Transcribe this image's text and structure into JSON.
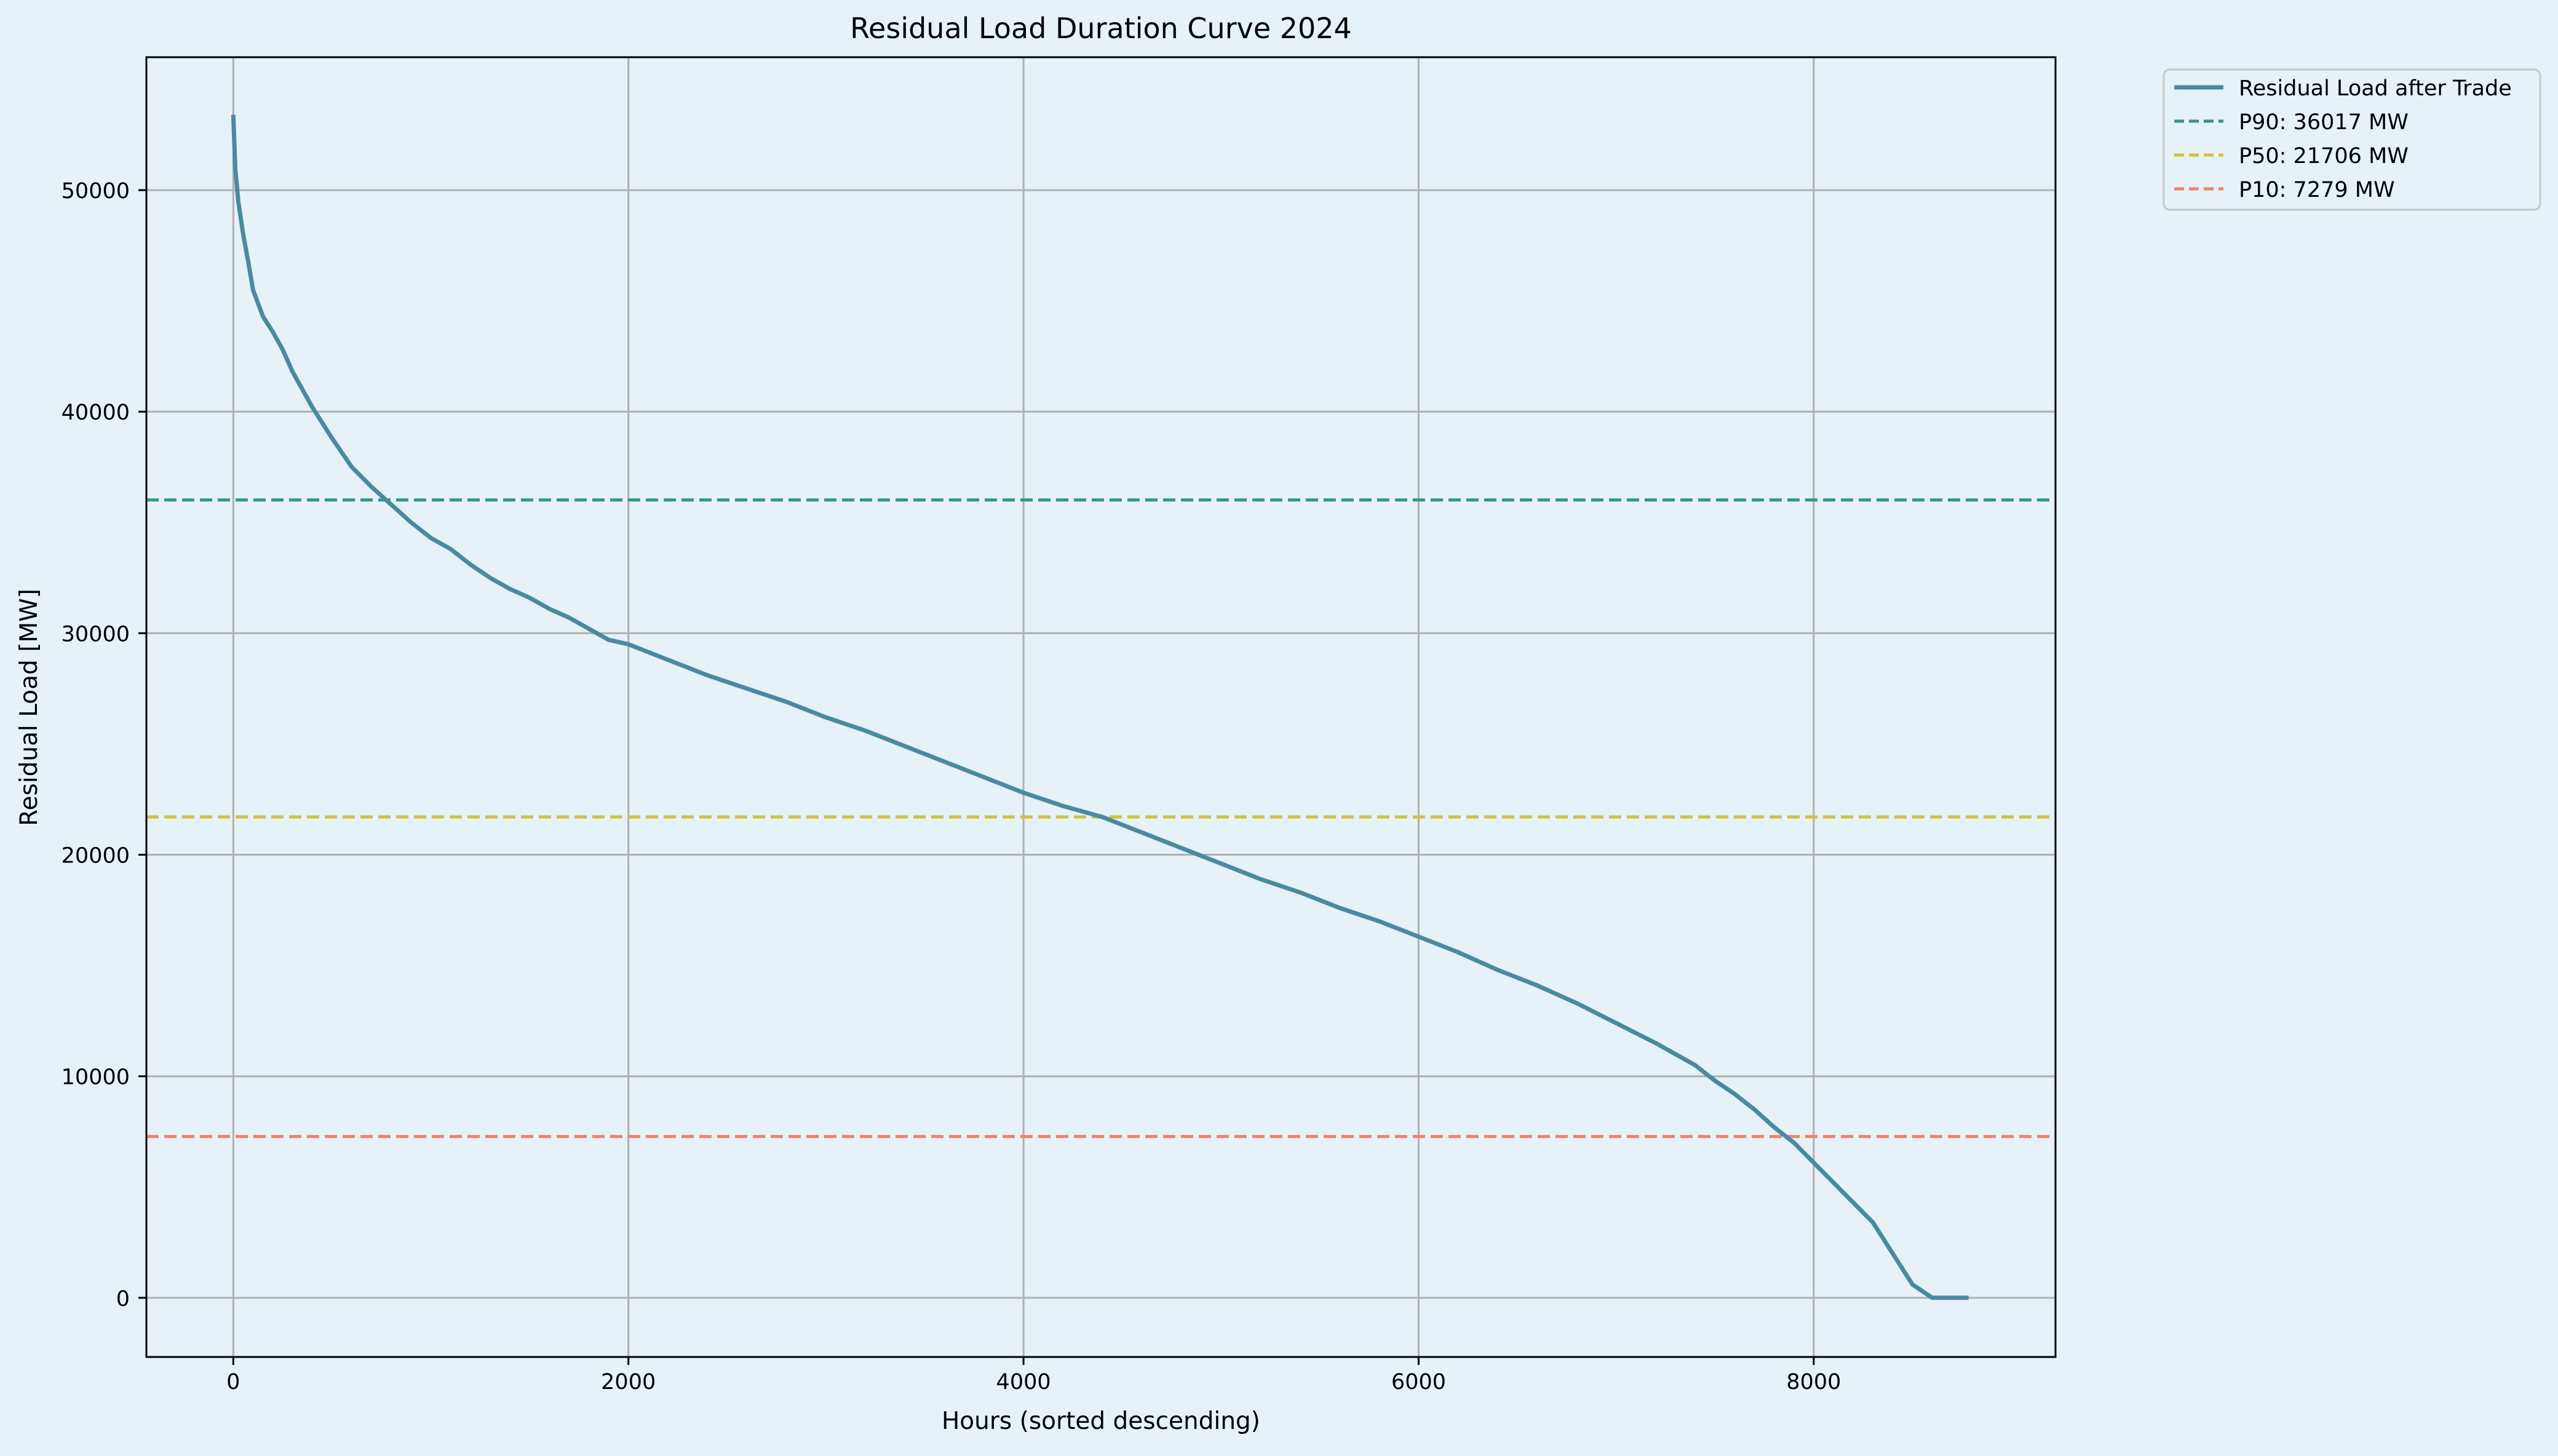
{
  "chart_data": {
    "type": "line",
    "title": "Residual Load Duration Curve 2024",
    "xlabel": "Hours (sorted descending)",
    "ylabel": "Residual Load [MW]",
    "xlim": [
      -440,
      9224
    ],
    "ylim": [
      -2670,
      56000
    ],
    "xticks": [
      0,
      2000,
      4000,
      6000,
      8000
    ],
    "yticks": [
      0,
      10000,
      20000,
      30000,
      40000,
      50000
    ],
    "grid": true,
    "legend_position": "outside-top-right",
    "series": [
      {
        "name": "Residual Load after Trade",
        "style": "solid",
        "color": "#4a8aa0",
        "x": [
          0,
          10,
          25,
          50,
          75,
          100,
          150,
          200,
          250,
          300,
          400,
          500,
          600,
          700,
          800,
          900,
          1000,
          1100,
          1200,
          1300,
          1400,
          1500,
          1600,
          1700,
          1800,
          1900,
          2000,
          2200,
          2400,
          2600,
          2800,
          3000,
          3200,
          3400,
          3600,
          3800,
          4000,
          4200,
          4400,
          4600,
          4800,
          5000,
          5200,
          5400,
          5600,
          5800,
          6000,
          6200,
          6400,
          6600,
          6800,
          7000,
          7200,
          7400,
          7500,
          7600,
          7700,
          7800,
          7900,
          8000,
          8100,
          8200,
          8300,
          8400,
          8500,
          8600,
          8700,
          8784
        ],
        "y": [
          53400,
          51000,
          49500,
          48000,
          46800,
          45500,
          44300,
          43600,
          42800,
          41800,
          40200,
          38800,
          37500,
          36600,
          35800,
          35000,
          34300,
          33800,
          33100,
          32500,
          32000,
          31600,
          31100,
          30700,
          30200,
          29700,
          29500,
          28800,
          28100,
          27500,
          26900,
          26200,
          25600,
          24900,
          24200,
          23500,
          22800,
          22200,
          21700,
          21000,
          20300,
          19600,
          18900,
          18300,
          17600,
          17000,
          16300,
          15600,
          14800,
          14100,
          13300,
          12400,
          11500,
          10500,
          9800,
          9200,
          8500,
          7700,
          7000,
          6100,
          5200,
          4300,
          3400,
          2000,
          600,
          0,
          0,
          0
        ]
      },
      {
        "name": "P90: 36017 MW",
        "style": "dashed",
        "color": "#2e9a80",
        "y_const": 36017
      },
      {
        "name": "P50: 21706 MW",
        "style": "dashed",
        "color": "#d0c23a",
        "y_const": 21706
      },
      {
        "name": "P10: 7279 MW",
        "style": "dashed",
        "color": "#ee8270",
        "y_const": 7279
      }
    ]
  }
}
